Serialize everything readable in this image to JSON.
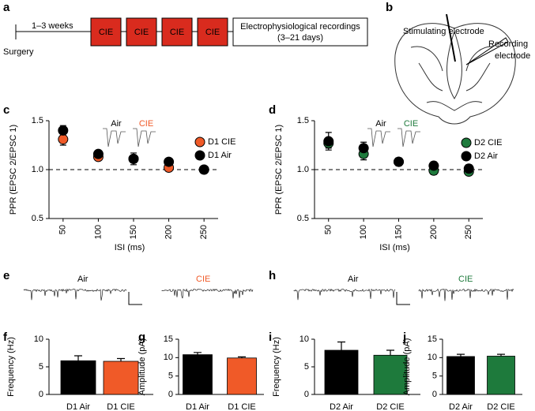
{
  "panel_a": {
    "letter": "a",
    "start": "Surgery",
    "interval": "1–3 weeks",
    "treatment": [
      "CIE",
      "CIE",
      "CIE",
      "CIE"
    ],
    "recording": [
      "Electrophysiological recordings",
      "(3–21 days)"
    ]
  },
  "panel_b": {
    "letter": "b",
    "labels": [
      "Stimulating electrode",
      "Recording",
      "electrode"
    ]
  },
  "panel_e": {
    "letter": "e",
    "labels": [
      "Air",
      "CIE"
    ]
  },
  "panel_h": {
    "letter": "h",
    "labels": [
      "Air",
      "CIE"
    ]
  },
  "chart_data": [
    {
      "type": "scatter",
      "panel": "c",
      "xlabel": "ISI (ms)",
      "ylabel": "PPR (EPSC 2/EPSC 1)",
      "inset_labels": [
        "Air",
        "CIE"
      ],
      "x": [
        50,
        100,
        150,
        200,
        250
      ],
      "xlim": [
        30,
        270
      ],
      "xticks": [
        50,
        100,
        150,
        200,
        250
      ],
      "ylim": [
        0.5,
        1.5
      ],
      "yticks": [
        {
          "value": 0.5,
          "label": "0.5"
        },
        {
          "value": 1.0,
          "label": "1.0"
        },
        {
          "value": 1.5,
          "label": "1.5"
        }
      ],
      "reference_line": 1,
      "series": [
        {
          "name": "D1 CIE",
          "color": "#f05a28",
          "values": [
            1.31,
            1.13,
            1.11,
            1.02,
            1.0
          ],
          "errors": [
            0.06,
            0.03,
            0.03,
            0.03,
            0.03
          ]
        },
        {
          "name": "D1 Air",
          "color": "#000000",
          "values": [
            1.4,
            1.16,
            1.11,
            1.08,
            1.0
          ],
          "errors": [
            0.05,
            0.03,
            0.06,
            0.02,
            0.03
          ]
        }
      ]
    },
    {
      "type": "scatter",
      "panel": "d",
      "xlabel": "ISI (ms)",
      "ylabel": "PPR (EPSC 2/EPSC 1)",
      "inset_labels": [
        "Air",
        "CIE"
      ],
      "x": [
        50,
        100,
        150,
        200,
        250
      ],
      "xlim": [
        30,
        270
      ],
      "xticks": [
        50,
        100,
        150,
        200,
        250
      ],
      "ylim": [
        0.5,
        1.5
      ],
      "yticks": [
        {
          "value": 0.5,
          "label": "0.5"
        },
        {
          "value": 1.0,
          "label": "1.0"
        },
        {
          "value": 1.5,
          "label": "1.5"
        }
      ],
      "reference_line": 1,
      "series": [
        {
          "name": "D2 CIE",
          "color": "#1e7a3c",
          "values": [
            1.27,
            1.16,
            1.08,
            0.99,
            0.98
          ],
          "errors": [
            0.05,
            0.06,
            0.04,
            0.04,
            0.03
          ]
        },
        {
          "name": "D2 Air",
          "color": "#000000",
          "values": [
            1.29,
            1.22,
            1.08,
            1.04,
            1.01
          ],
          "errors": [
            0.09,
            0.06,
            0.04,
            0.04,
            0.04
          ]
        }
      ]
    },
    {
      "type": "bar",
      "panel": "f",
      "ylabel": "Frequency (Hz)",
      "categories": [
        "D1 Air",
        "D1 CIE"
      ],
      "values": [
        6.1,
        6.0
      ],
      "errors": [
        0.9,
        0.5
      ],
      "colors": [
        "#000000",
        "#f05a28"
      ],
      "ylim": [
        0,
        10
      ],
      "yticks": [
        0,
        5,
        10
      ]
    },
    {
      "type": "bar",
      "panel": "g",
      "ylabel": "Amplitude (pA)",
      "categories": [
        "D1 Air",
        "D1 CIE"
      ],
      "values": [
        10.8,
        9.9
      ],
      "errors": [
        0.6,
        0.3
      ],
      "colors": [
        "#000000",
        "#f05a28"
      ],
      "ylim": [
        0,
        15
      ],
      "yticks": [
        0,
        5,
        10,
        15
      ]
    },
    {
      "type": "bar",
      "panel": "i",
      "ylabel": "Frequency (Hz)",
      "categories": [
        "D2 Air",
        "D2 CIE"
      ],
      "values": [
        8.0,
        7.1
      ],
      "errors": [
        1.5,
        0.9
      ],
      "colors": [
        "#000000",
        "#1e7a3c"
      ],
      "ylim": [
        0,
        10
      ],
      "yticks": [
        0,
        5,
        10
      ]
    },
    {
      "type": "bar",
      "panel": "j",
      "ylabel": "Amplitude (pA)",
      "categories": [
        "D2 Air",
        "D2 CIE"
      ],
      "values": [
        10.3,
        10.4
      ],
      "errors": [
        0.6,
        0.5
      ],
      "colors": [
        "#000000",
        "#1e7a3c"
      ],
      "ylim": [
        0,
        15
      ],
      "yticks": [
        0,
        5,
        10,
        15
      ]
    }
  ]
}
